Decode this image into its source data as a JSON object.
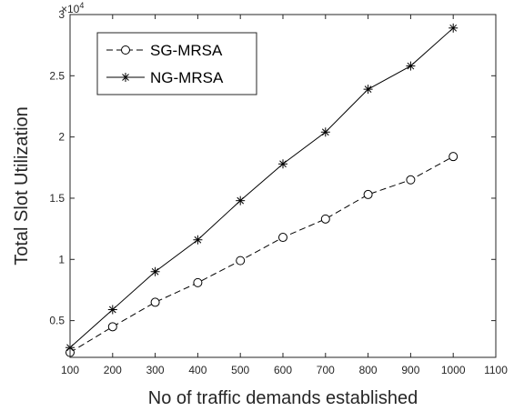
{
  "chart_data": {
    "type": "line",
    "title": "",
    "xlabel": "No of traffic demands established",
    "ylabel": "Total Slot Utilization",
    "y_exponent_base": "×10",
    "y_exponent_power": "4",
    "xlim": [
      100,
      1100
    ],
    "ylim": [
      2000,
      30000
    ],
    "x_ticks": [
      100,
      200,
      300,
      400,
      500,
      600,
      700,
      800,
      900,
      1000,
      1100
    ],
    "x_tick_labels": [
      "100",
      "200",
      "300",
      "400",
      "500",
      "600",
      "700",
      "800",
      "900",
      "1000",
      "1100"
    ],
    "y_ticks": [
      5000,
      10000,
      15000,
      20000,
      25000,
      30000
    ],
    "y_tick_labels": [
      "0.5",
      "1",
      "1.5",
      "2",
      "2.5",
      "3"
    ],
    "grid": false,
    "legend_position": "top-left",
    "x": [
      100,
      200,
      300,
      400,
      500,
      600,
      700,
      800,
      900,
      1000
    ],
    "series": [
      {
        "name": "SG-MRSA",
        "values": [
          2400,
          4500,
          6500,
          8100,
          9900,
          11800,
          13300,
          15300,
          16500,
          18400
        ],
        "line_style": "dashed",
        "marker": "circle",
        "color": "#000000"
      },
      {
        "name": "NG-MRSA",
        "values": [
          2800,
          5900,
          9000,
          11600,
          14800,
          17800,
          20400,
          23900,
          25800,
          28900
        ],
        "line_style": "solid",
        "marker": "asterisk",
        "color": "#000000"
      }
    ]
  }
}
